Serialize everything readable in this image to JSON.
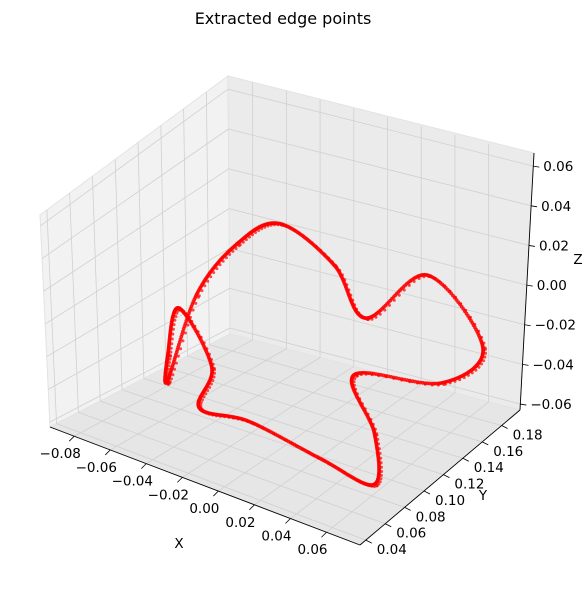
{
  "chart_data": {
    "type": "scatter",
    "projection": "3d",
    "title": "Extracted edge points",
    "xlabel": "X",
    "ylabel": "Y",
    "zlabel": "Z",
    "xlim": [
      -0.09,
      0.06
    ],
    "ylim": [
      0.03,
      0.19
    ],
    "zlim": [
      -0.07,
      0.065
    ],
    "xticks": [
      "−0.08",
      "−0.06",
      "−0.04",
      "−0.02",
      "0.00",
      "0.02",
      "0.04",
      "0.06"
    ],
    "yticks": [
      "0.04",
      "0.06",
      "0.08",
      "0.10",
      "0.12",
      "0.14",
      "0.16",
      "0.18"
    ],
    "zticks": [
      "−0.06",
      "−0.04",
      "−0.02",
      "0.00",
      "0.02",
      "0.04",
      "0.06"
    ],
    "grid": true,
    "marker_color": "#ff0000",
    "series": [
      {
        "name": "",
        "points_approx": [
          [
            -0.075,
            0.12,
            -0.02
          ],
          [
            -0.07,
            0.1,
            -0.04
          ],
          [
            -0.065,
            0.09,
            -0.05
          ],
          [
            -0.06,
            0.11,
            0.0
          ],
          [
            -0.05,
            0.13,
            0.03
          ],
          [
            -0.04,
            0.15,
            0.04
          ],
          [
            -0.02,
            0.16,
            0.02
          ],
          [
            0.0,
            0.15,
            0.0
          ],
          [
            0.02,
            0.17,
            0.03
          ],
          [
            0.04,
            0.18,
            -0.01
          ],
          [
            0.03,
            0.16,
            -0.03
          ],
          [
            0.01,
            0.12,
            -0.02
          ],
          [
            0.03,
            0.1,
            -0.04
          ],
          [
            0.04,
            0.08,
            -0.06
          ],
          [
            0.02,
            0.07,
            -0.05
          ],
          [
            -0.02,
            0.08,
            -0.05
          ],
          [
            -0.05,
            0.09,
            -0.06
          ],
          [
            -0.06,
            0.12,
            -0.05
          ]
        ]
      }
    ]
  }
}
